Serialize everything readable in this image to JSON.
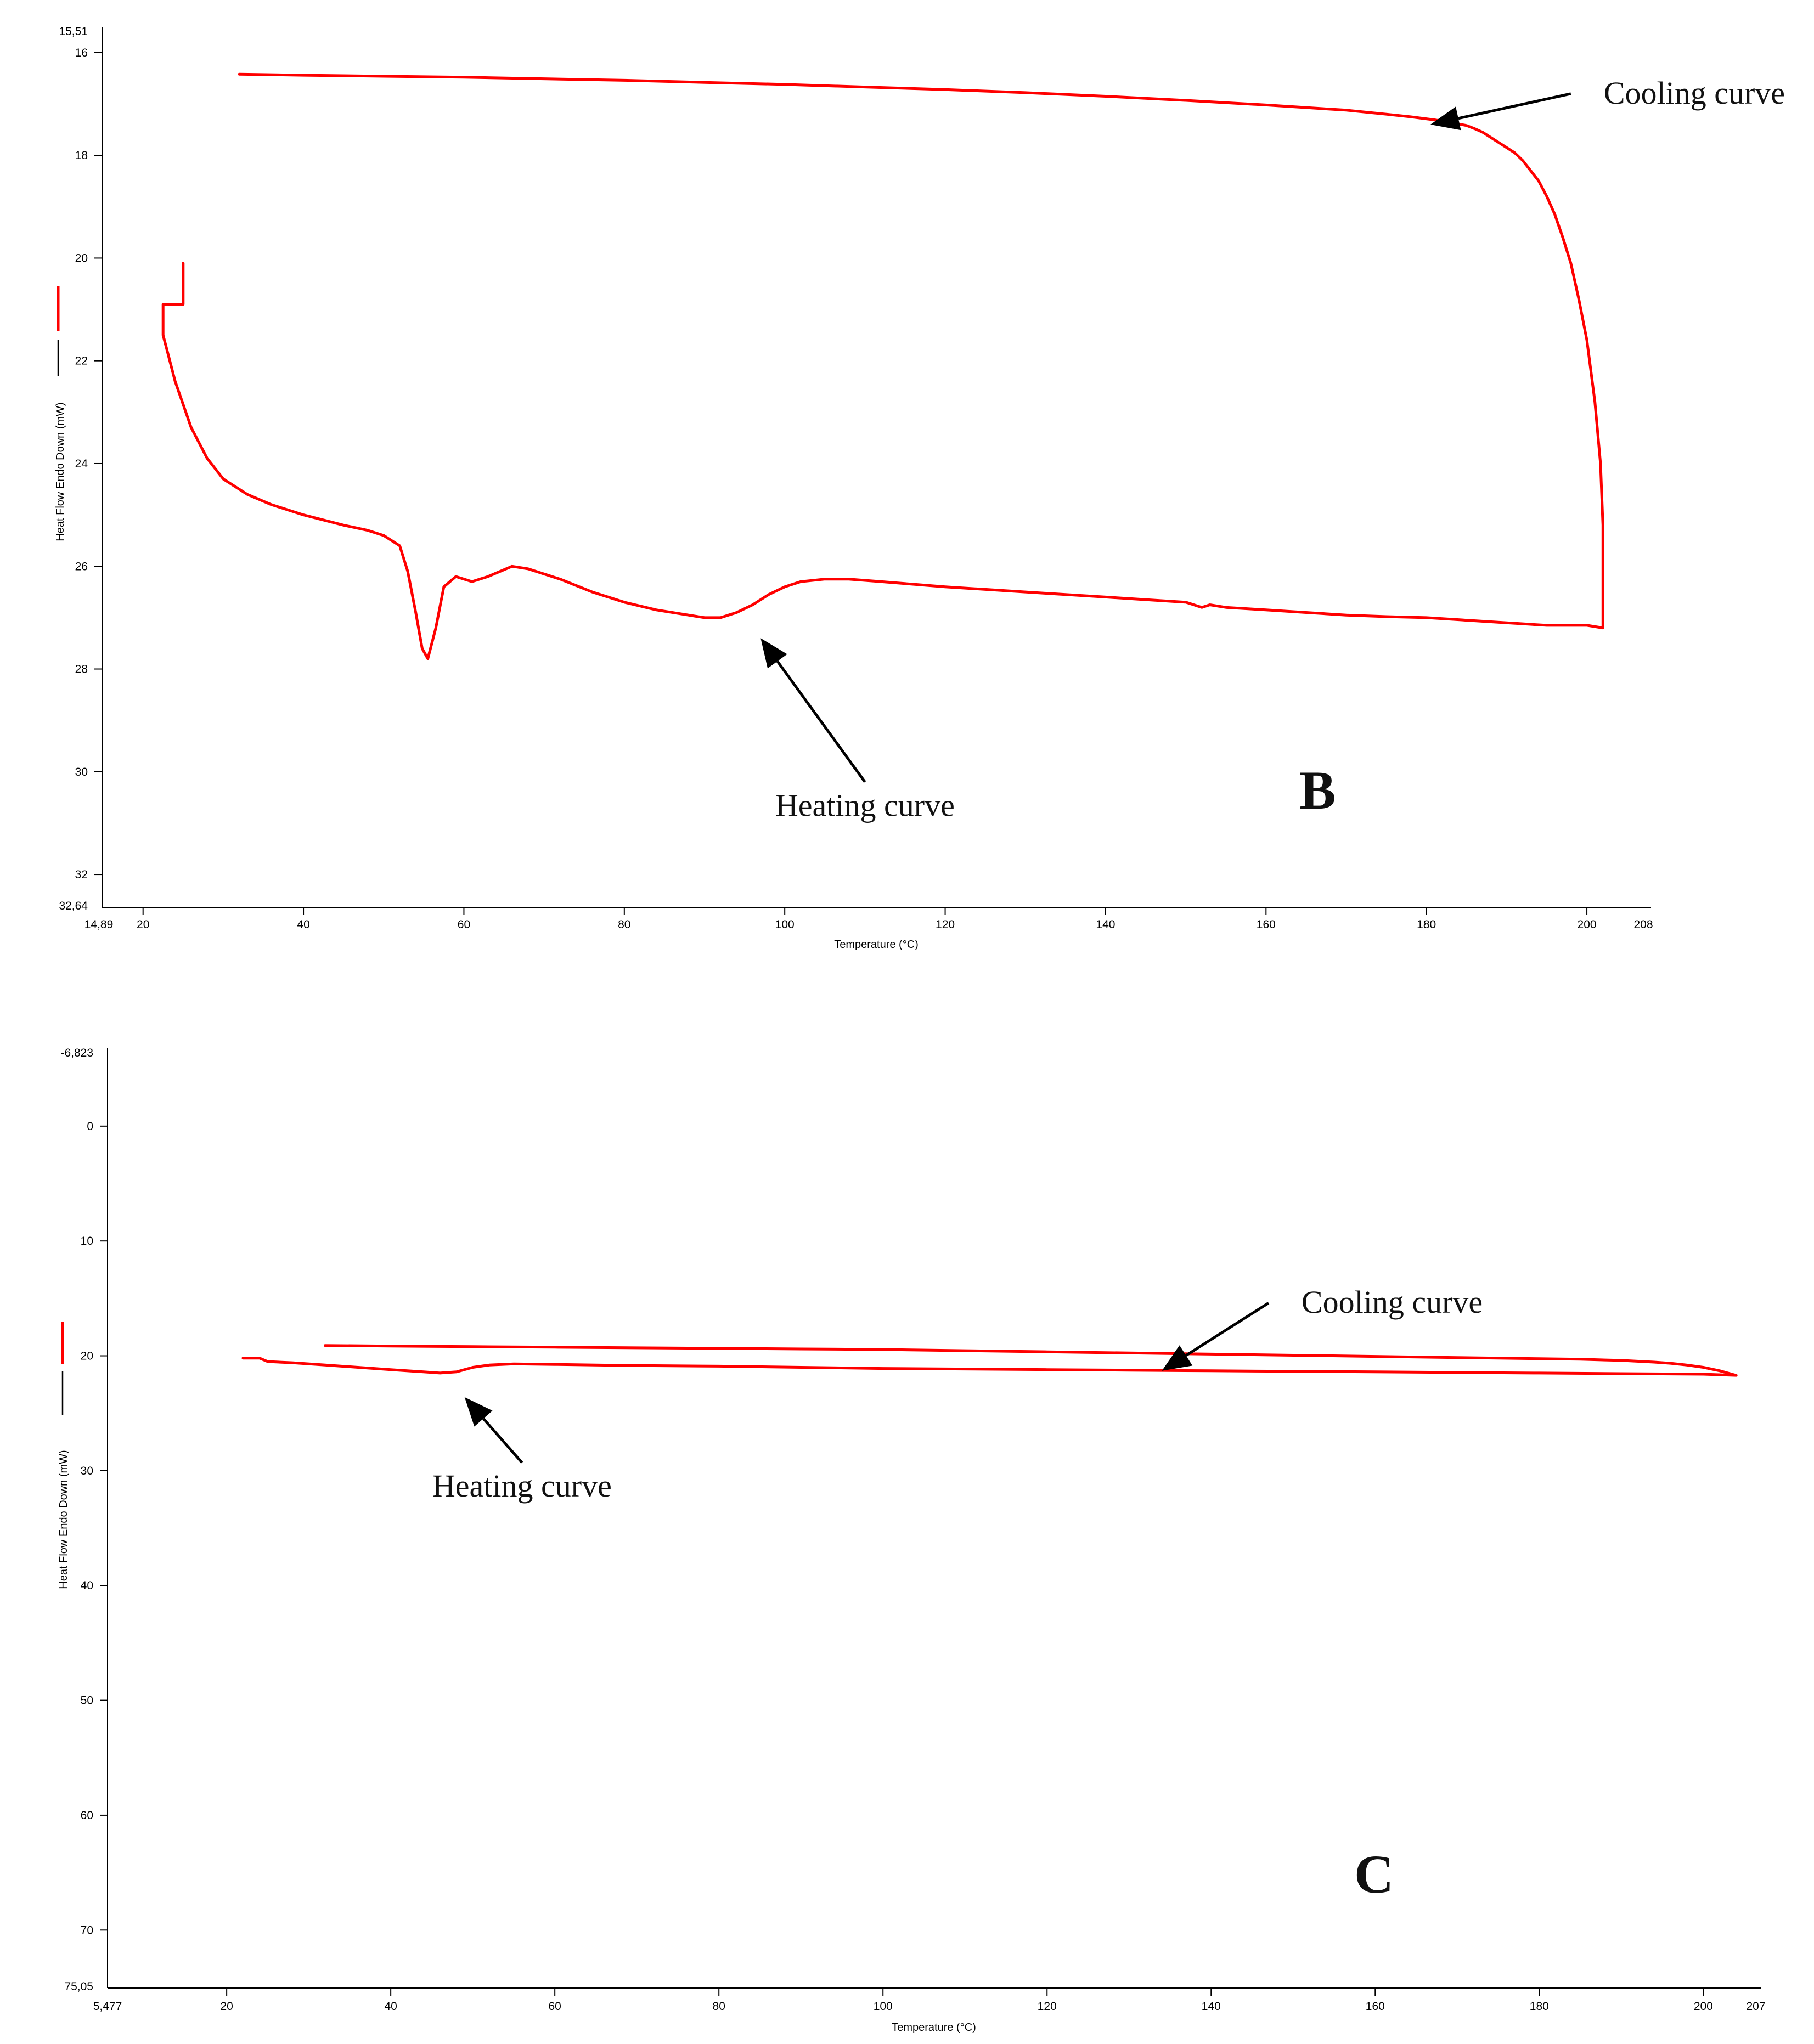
{
  "chart_data": [
    {
      "panel": "B",
      "type": "line",
      "xlabel": "Temperature (°C)",
      "ylabel": "Heat Flow Endo Down (mW)",
      "xlim": [
        14.89,
        208
      ],
      "ylim": [
        15.51,
        32.64
      ],
      "xlim_labels": [
        "14,89",
        "208"
      ],
      "ylim_labels": [
        "15,51",
        "32,64"
      ],
      "x_ticks": [
        20,
        40,
        60,
        80,
        100,
        120,
        140,
        160,
        180,
        200
      ],
      "y_ticks": [
        16,
        18,
        20,
        22,
        24,
        26,
        28,
        30,
        32
      ],
      "annotations": [
        {
          "text": "Cooling curve",
          "tail": [
            198,
            16.8
          ],
          "head": [
            180.5,
            17.4
          ]
        },
        {
          "text": "Heating curve",
          "tail": [
            110,
            30.2
          ],
          "head": [
            97,
            27.4
          ]
        }
      ],
      "series": [
        {
          "name": "Heating curve",
          "x": [
            25,
            25,
            22.5,
            22.5,
            23,
            24,
            26,
            28,
            30,
            33,
            36,
            40,
            45,
            48,
            50,
            52,
            53,
            54,
            54.8,
            55.5,
            56.5,
            57.5,
            59,
            61,
            63,
            66,
            68,
            72,
            76,
            80,
            84,
            88,
            90,
            92,
            94,
            96,
            98,
            100,
            102,
            105,
            108,
            112,
            116,
            120,
            125,
            130,
            135,
            140,
            145,
            150,
            152,
            153,
            155,
            160,
            165,
            170,
            175,
            180,
            185,
            190,
            195,
            200,
            202
          ],
          "y": [
            20.1,
            20.9,
            20.9,
            21.5,
            21.8,
            22.4,
            23.3,
            23.9,
            24.3,
            24.6,
            24.8,
            25.0,
            25.2,
            25.3,
            25.4,
            25.6,
            26.1,
            26.9,
            27.6,
            27.8,
            27.2,
            26.4,
            26.2,
            26.3,
            26.2,
            26.0,
            26.05,
            26.25,
            26.5,
            26.7,
            26.85,
            26.95,
            27.0,
            27.0,
            26.9,
            26.75,
            26.55,
            26.4,
            26.3,
            26.25,
            26.25,
            26.3,
            26.35,
            26.4,
            26.45,
            26.5,
            26.55,
            26.6,
            26.65,
            26.7,
            26.8,
            26.75,
            26.8,
            26.85,
            26.9,
            26.95,
            26.98,
            27.0,
            27.05,
            27.1,
            27.15,
            27.15,
            27.2
          ]
        },
        {
          "name": "Cooling curve",
          "x": [
            202,
            202,
            201.7,
            201,
            200,
            199,
            198,
            197,
            196,
            195,
            194,
            193,
            192,
            191,
            190,
            189,
            188,
            187,
            186,
            185,
            183,
            181,
            178,
            175,
            170,
            160,
            150,
            140,
            130,
            120,
            110,
            100,
            90,
            80,
            70,
            60,
            50,
            40,
            32
          ],
          "y": [
            27.2,
            25.2,
            24.0,
            22.8,
            21.6,
            20.8,
            20.1,
            19.6,
            19.15,
            18.8,
            18.5,
            18.3,
            18.1,
            17.95,
            17.85,
            17.75,
            17.65,
            17.55,
            17.48,
            17.42,
            17.36,
            17.31,
            17.25,
            17.2,
            17.12,
            17.02,
            16.93,
            16.85,
            16.78,
            16.72,
            16.67,
            16.62,
            16.58,
            16.54,
            16.51,
            16.48,
            16.46,
            16.44,
            16.42
          ]
        }
      ]
    },
    {
      "panel": "C",
      "type": "line",
      "xlabel": "Temperature (°C)",
      "ylabel": "Heat Flow Endo Down (mW)",
      "xlim": [
        5.477,
        207
      ],
      "ylim": [
        -6.823,
        75.05
      ],
      "xlim_labels": [
        "5,477",
        "207"
      ],
      "ylim_labels": [
        "-6,823",
        "75,05"
      ],
      "x_ticks": [
        20,
        40,
        60,
        80,
        100,
        120,
        140,
        160,
        180,
        200
      ],
      "y_ticks": [
        0,
        10,
        20,
        30,
        40,
        50,
        60,
        70
      ],
      "annotations": [
        {
          "text": "Cooling curve",
          "tail": [
            147,
            15.4
          ],
          "head": [
            134,
            21.3
          ]
        },
        {
          "text": "Heating curve",
          "tail": [
            56,
            29.3
          ],
          "head": [
            49,
            23.6
          ]
        }
      ],
      "series": [
        {
          "name": "Heating curve",
          "x": [
            22,
            24,
            25,
            28,
            32,
            36,
            40,
            44,
            46,
            48,
            50,
            52,
            55,
            60,
            70,
            80,
            90,
            100,
            110,
            120,
            130,
            140,
            150,
            160,
            170,
            180,
            190,
            200,
            204
          ],
          "y": [
            20.2,
            20.2,
            20.5,
            20.6,
            20.8,
            21.0,
            21.2,
            21.4,
            21.5,
            21.4,
            21.0,
            20.8,
            20.7,
            20.75,
            20.85,
            20.9,
            21.0,
            21.1,
            21.15,
            21.2,
            21.25,
            21.3,
            21.35,
            21.4,
            21.45,
            21.5,
            21.55,
            21.6,
            21.7
          ]
        },
        {
          "name": "Cooling curve",
          "x": [
            204,
            202,
            200,
            198,
            196,
            194,
            190,
            185,
            180,
            170,
            160,
            150,
            140,
            130,
            120,
            110,
            100,
            90,
            80,
            70,
            60,
            50,
            40,
            32
          ],
          "y": [
            21.7,
            21.3,
            21.0,
            20.8,
            20.65,
            20.55,
            20.4,
            20.3,
            20.25,
            20.15,
            20.05,
            19.95,
            19.85,
            19.75,
            19.65,
            19.55,
            19.45,
            19.4,
            19.35,
            19.3,
            19.25,
            19.2,
            19.15,
            19.1
          ]
        }
      ]
    }
  ]
}
